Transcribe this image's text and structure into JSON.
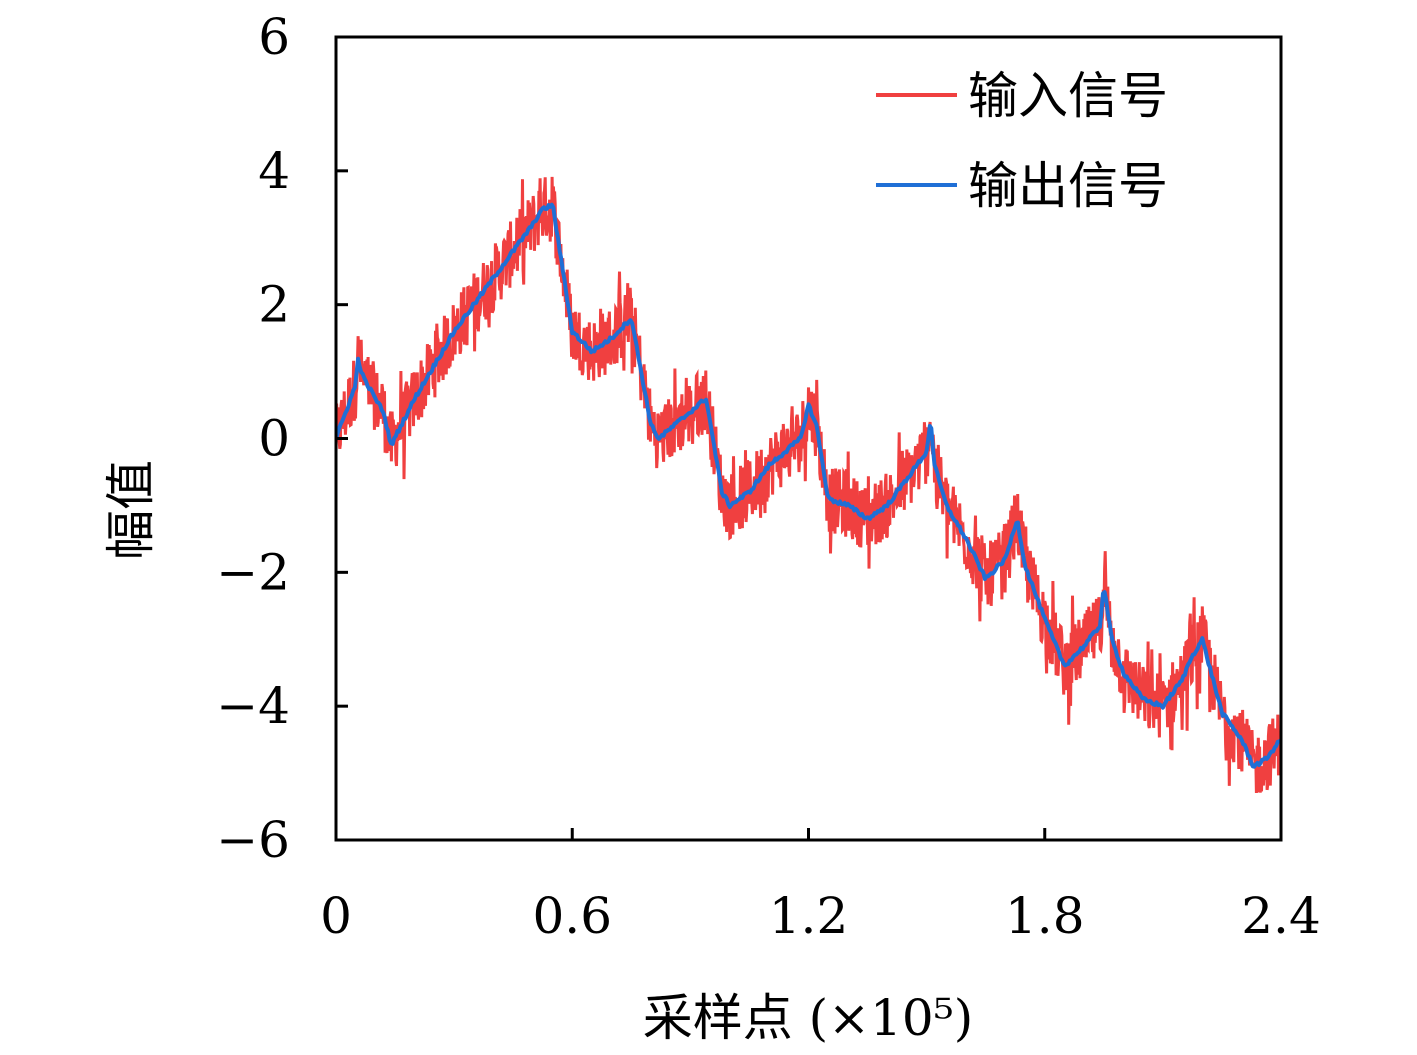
{
  "chart_data": {
    "type": "line",
    "xlabel": "采样点 (×10⁵)",
    "ylabel": "幅值",
    "xlim": [
      0,
      2.4
    ],
    "ylim": [
      -6,
      6
    ],
    "xticks": [
      "0",
      "0.6",
      "1.2",
      "1.8",
      "2.4"
    ],
    "xtick_values": [
      0,
      0.6,
      1.2,
      1.8,
      2.4
    ],
    "yticks": [
      "6",
      "4",
      "2",
      "0",
      "−2",
      "−4",
      "−6"
    ],
    "ytick_values": [
      6,
      4,
      2,
      0,
      -2,
      -4,
      -6
    ],
    "grid": false,
    "legend_position": "top-right",
    "series": [
      {
        "name": "输入信号",
        "color": "#f04040",
        "noise_band": 0.5,
        "x": [
          0,
          0.05,
          0.055,
          0.07,
          0.12,
          0.14,
          0.2,
          0.3,
          0.4,
          0.5,
          0.52,
          0.55,
          0.6,
          0.65,
          0.7,
          0.75,
          0.8,
          0.82,
          0.88,
          0.92,
          0.94,
          0.98,
          1.0,
          1.05,
          1.1,
          1.18,
          1.2,
          1.22,
          1.25,
          1.3,
          1.35,
          1.4,
          1.45,
          1.5,
          1.51,
          1.52,
          1.55,
          1.6,
          1.65,
          1.7,
          1.73,
          1.75,
          1.8,
          1.85,
          1.9,
          1.94,
          1.95,
          1.97,
          2.0,
          2.05,
          2.1,
          2.15,
          2.17,
          2.2,
          2.25,
          2.3,
          2.33,
          2.36,
          2.4
        ],
        "y": [
          0.0,
          0.8,
          1.2,
          0.9,
          0.4,
          -0.1,
          0.6,
          1.6,
          2.4,
          3.2,
          3.4,
          3.5,
          1.6,
          1.3,
          1.5,
          1.8,
          0.2,
          0.0,
          0.3,
          0.5,
          0.6,
          -0.8,
          -1.0,
          -0.8,
          -0.4,
          0.0,
          0.5,
          0.2,
          -0.9,
          -1.0,
          -1.2,
          -1.0,
          -0.6,
          -0.2,
          0.3,
          -0.4,
          -1.0,
          -1.5,
          -2.1,
          -1.8,
          -1.2,
          -1.9,
          -2.7,
          -3.4,
          -3.1,
          -2.8,
          -2.2,
          -3.0,
          -3.5,
          -3.9,
          -4.0,
          -3.6,
          -3.3,
          -3.0,
          -4.1,
          -4.5,
          -4.9,
          -4.8,
          -4.5
        ]
      },
      {
        "name": "输出信号",
        "color": "#1f6fd6",
        "x": [
          0,
          0.05,
          0.055,
          0.07,
          0.12,
          0.14,
          0.2,
          0.3,
          0.4,
          0.5,
          0.52,
          0.55,
          0.6,
          0.65,
          0.7,
          0.75,
          0.8,
          0.82,
          0.88,
          0.92,
          0.94,
          0.98,
          1.0,
          1.05,
          1.1,
          1.18,
          1.2,
          1.22,
          1.25,
          1.3,
          1.35,
          1.4,
          1.45,
          1.5,
          1.51,
          1.52,
          1.55,
          1.6,
          1.65,
          1.7,
          1.73,
          1.75,
          1.8,
          1.85,
          1.9,
          1.94,
          1.95,
          1.97,
          2.0,
          2.05,
          2.1,
          2.15,
          2.17,
          2.2,
          2.25,
          2.3,
          2.33,
          2.36,
          2.4
        ],
        "y": [
          0.0,
          0.8,
          1.2,
          0.9,
          0.4,
          -0.1,
          0.6,
          1.6,
          2.4,
          3.2,
          3.4,
          3.5,
          1.6,
          1.3,
          1.5,
          1.8,
          0.2,
          0.0,
          0.3,
          0.5,
          0.6,
          -0.8,
          -1.0,
          -0.8,
          -0.4,
          0.0,
          0.5,
          0.2,
          -0.9,
          -1.0,
          -1.2,
          -1.0,
          -0.6,
          -0.2,
          0.3,
          -0.4,
          -1.0,
          -1.5,
          -2.1,
          -1.8,
          -1.2,
          -1.9,
          -2.7,
          -3.4,
          -3.1,
          -2.8,
          -2.2,
          -3.0,
          -3.5,
          -3.9,
          -4.0,
          -3.6,
          -3.3,
          -3.0,
          -4.1,
          -4.5,
          -4.9,
          -4.8,
          -4.5
        ]
      }
    ]
  }
}
